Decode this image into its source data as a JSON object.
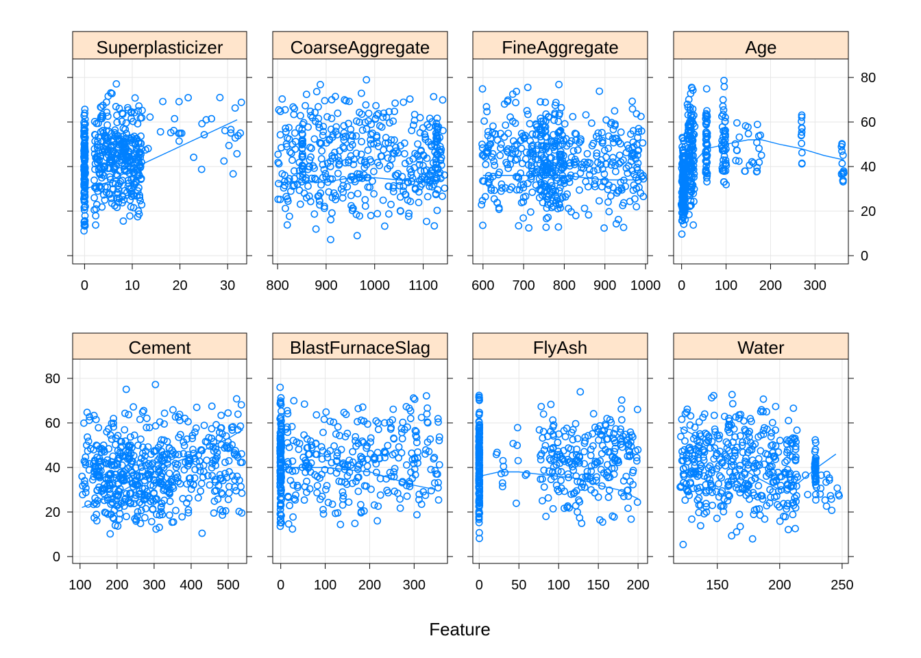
{
  "colors": {
    "points": "#0080ff",
    "strip": "#ffe5cc",
    "grid": "#e6e6e6"
  },
  "chart_data": {
    "type": "scatter",
    "xlabel": "Feature",
    "ylabel": "",
    "ylim": [
      0,
      85
    ],
    "yticks": [
      0,
      20,
      40,
      60,
      80
    ],
    "grid": true,
    "panels": [
      {
        "name": "Superplasticizer",
        "xlim": [
          -2.5,
          34
        ],
        "xticks": [
          0,
          10,
          20,
          30
        ],
        "clusters": [
          {
            "xs": [
              0
            ],
            "xj": 0.15,
            "y": [
              2,
              75
            ],
            "n": 110
          },
          {
            "xs": [
              2,
              12
            ],
            "xj": 0,
            "y": [
              8,
              80
            ],
            "n": 330
          },
          {
            "xs": [
              12,
              33
            ],
            "xj": 0,
            "y": [
              28,
              83
            ],
            "n": 35
          }
        ],
        "smooth": [
          [
            0,
            30
          ],
          [
            5,
            33
          ],
          [
            10,
            39
          ],
          [
            15,
            44
          ],
          [
            20,
            49
          ],
          [
            25,
            54
          ],
          [
            30,
            59
          ],
          [
            32,
            61
          ]
        ]
      },
      {
        "name": "CoarseAggregate",
        "xlim": [
          790,
          1150
        ],
        "xticks": [
          800,
          900,
          1000,
          1100
        ],
        "clusters": [
          {
            "xs": [
              800,
              1145
            ],
            "xj": 0,
            "y": [
              3,
              83
            ],
            "n": 420
          },
          {
            "xs": [
              850,
              852
            ],
            "xj": 0,
            "y": [
              25,
              75
            ],
            "n": 25
          },
          {
            "xs": [
              1125,
              1130
            ],
            "xj": 0,
            "y": [
              10,
              82
            ],
            "n": 25
          }
        ],
        "smooth": [
          [
            800,
            33
          ],
          [
            850,
            33
          ],
          [
            900,
            33
          ],
          [
            950,
            35
          ],
          [
            1000,
            35
          ],
          [
            1050,
            34
          ],
          [
            1100,
            33
          ],
          [
            1140,
            34
          ]
        ]
      },
      {
        "name": "FineAggregate",
        "xlim": [
          575,
          1005
        ],
        "xticks": [
          600,
          700,
          800,
          900,
          1000
        ],
        "clusters": [
          {
            "xs": [
              595,
              995
            ],
            "xj": 0,
            "y": [
              3,
              83
            ],
            "n": 380
          },
          {
            "xs": [
              740,
              800
            ],
            "xj": 0,
            "y": [
              5,
              83
            ],
            "n": 130
          }
        ],
        "smooth": [
          [
            600,
            36
          ],
          [
            650,
            36
          ],
          [
            700,
            36
          ],
          [
            750,
            36
          ],
          [
            800,
            36
          ],
          [
            850,
            35
          ],
          [
            900,
            34
          ],
          [
            950,
            34
          ],
          [
            990,
            34
          ]
        ]
      },
      {
        "name": "Age",
        "xlim": [
          -18,
          375
        ],
        "xticks": [
          0,
          100,
          200,
          300
        ],
        "clusters": [
          {
            "xs": [
              1,
              7
            ],
            "xj": 2,
            "y": [
              2,
              60
            ],
            "n": 140
          },
          {
            "xs": [
              14,
              28
            ],
            "xj": 2,
            "y": [
              10,
              82
            ],
            "n": 130
          },
          {
            "xs": [
              56
            ],
            "xj": 2,
            "y": [
              22,
              80
            ],
            "n": 50
          },
          {
            "xs": [
              90,
              100
            ],
            "xj": 2,
            "y": [
              20,
              82
            ],
            "n": 45
          },
          {
            "xs": [
              120,
              180
            ],
            "xj": 1,
            "y": [
              24,
              72
            ],
            "n": 25
          },
          {
            "xs": [
              270
            ],
            "xj": 1,
            "y": [
              38,
              74
            ],
            "n": 12
          },
          {
            "xs": [
              360,
              365
            ],
            "xj": 1,
            "y": [
              25,
              56
            ],
            "n": 16
          }
        ],
        "smooth": [
          [
            1,
            22
          ],
          [
            10,
            32
          ],
          [
            28,
            42
          ],
          [
            56,
            48
          ],
          [
            100,
            50
          ],
          [
            150,
            52
          ],
          [
            180,
            52
          ],
          [
            220,
            50
          ],
          [
            270,
            48
          ],
          [
            320,
            45
          ],
          [
            365,
            43
          ]
        ]
      },
      {
        "name": "Cement",
        "xlim": [
          80,
          550
        ],
        "xticks": [
          100,
          200,
          300,
          400,
          500
        ],
        "clusters": [
          {
            "xs": [
              105,
              540
            ],
            "xj": 0,
            "y": [
              3,
              82
            ],
            "n": 380
          },
          {
            "xs": [
              140,
              350
            ],
            "xj": 0,
            "y": [
              5,
              60
            ],
            "n": 180
          }
        ],
        "smooth": [
          [
            105,
            22
          ],
          [
            150,
            25
          ],
          [
            200,
            28
          ],
          [
            250,
            33
          ],
          [
            300,
            38
          ],
          [
            350,
            42
          ],
          [
            400,
            45
          ],
          [
            450,
            49
          ],
          [
            500,
            53
          ],
          [
            540,
            57
          ]
        ]
      },
      {
        "name": "BlastFurnaceSlag",
        "xlim": [
          -18,
          375
        ],
        "xticks": [
          0,
          100,
          200,
          300
        ],
        "clusters": [
          {
            "xs": [
              0
            ],
            "xj": 1.5,
            "y": [
              5,
              80
            ],
            "n": 110
          },
          {
            "xs": [
              10,
              360
            ],
            "xj": 0,
            "y": [
              2,
              82
            ],
            "n": 290
          }
        ],
        "smooth": [
          [
            0,
            40
          ],
          [
            50,
            40
          ],
          [
            100,
            40
          ],
          [
            150,
            39
          ],
          [
            200,
            38
          ],
          [
            250,
            35
          ],
          [
            300,
            32
          ],
          [
            350,
            30
          ]
        ]
      },
      {
        "name": "FlyAsh",
        "xlim": [
          -8,
          212
        ],
        "xticks": [
          0,
          50,
          100,
          150,
          200
        ],
        "clusters": [
          {
            "xs": [
              0
            ],
            "xj": 0.4,
            "y": [
              2,
              82
            ],
            "n": 160
          },
          {
            "xs": [
              75,
              200
            ],
            "xj": 0,
            "y": [
              8,
              78
            ],
            "n": 240
          },
          {
            "xs": [
              20,
              60
            ],
            "xj": 0,
            "y": [
              12,
              65
            ],
            "n": 15
          }
        ],
        "smooth": [
          [
            0,
            36
          ],
          [
            25,
            38
          ],
          [
            50,
            38
          ],
          [
            75,
            37
          ],
          [
            100,
            36
          ],
          [
            125,
            35
          ],
          [
            150,
            32
          ],
          [
            175,
            30
          ],
          [
            200,
            26
          ]
        ]
      },
      {
        "name": "Water",
        "xlim": [
          115,
          255
        ],
        "xticks": [
          150,
          200,
          250
        ],
        "clusters": [
          {
            "xs": [
              120,
              215
            ],
            "xj": 0,
            "y": [
              2,
              82
            ],
            "n": 400
          },
          {
            "xs": [
              228,
              229
            ],
            "xj": 0,
            "y": [
              23,
              57
            ],
            "n": 40
          },
          {
            "xs": [
              215,
              248
            ],
            "xj": 0,
            "y": [
              15,
              45
            ],
            "n": 20
          }
        ],
        "smooth": [
          [
            120,
            58
          ],
          [
            140,
            52
          ],
          [
            160,
            43
          ],
          [
            180,
            36
          ],
          [
            200,
            30
          ],
          [
            215,
            33
          ],
          [
            230,
            40
          ],
          [
            245,
            46
          ]
        ]
      }
    ]
  }
}
